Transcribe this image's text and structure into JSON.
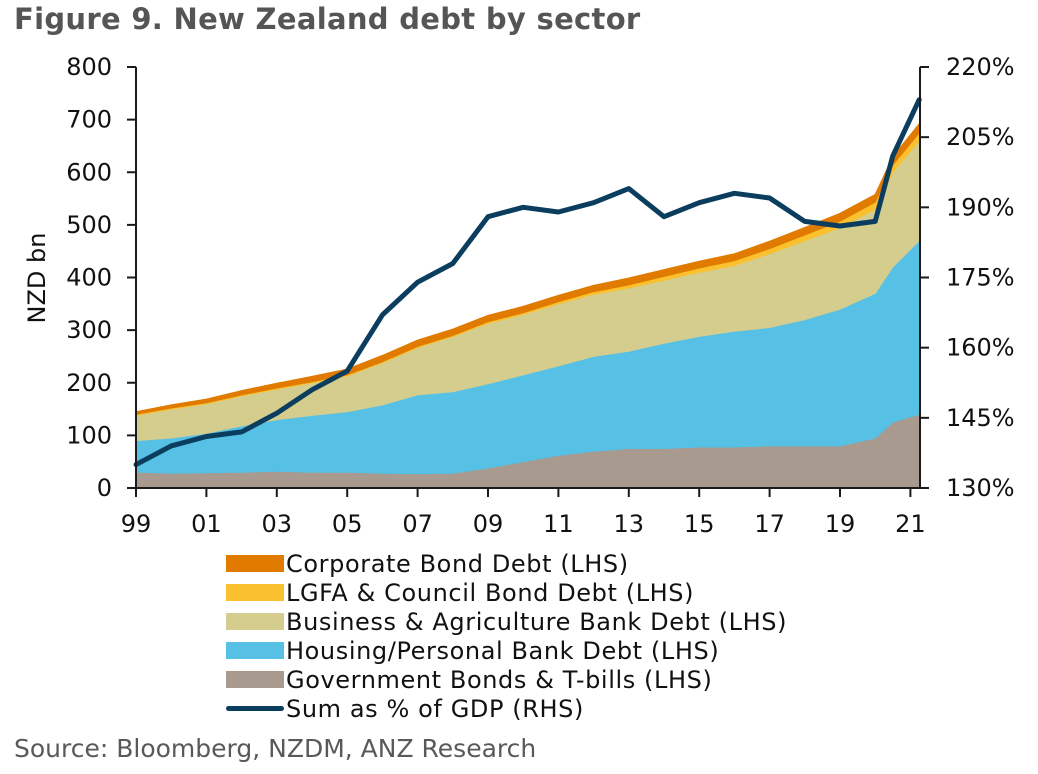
{
  "title": "Figure 9. New Zealand debt by sector",
  "source": "Source: Bloomberg, NZDM, ANZ Research",
  "chart_data": {
    "type": "area",
    "stacked": true,
    "title": "Figure 9. New Zealand debt by sector",
    "xlabel": "",
    "ylabel": "NZD bn",
    "y2label": "",
    "x": [
      1999,
      2000,
      2001,
      2002,
      2003,
      2004,
      2005,
      2006,
      2007,
      2008,
      2009,
      2010,
      2011,
      2012,
      2013,
      2014,
      2015,
      2016,
      2017,
      2018,
      2019,
      2020,
      2020.5,
      2021.25
    ],
    "x_ticks": [
      "99",
      "01",
      "03",
      "05",
      "07",
      "09",
      "11",
      "13",
      "15",
      "17",
      "19",
      "21"
    ],
    "x_tick_years": [
      1999,
      2001,
      2003,
      2005,
      2007,
      2009,
      2011,
      2013,
      2015,
      2017,
      2019,
      2021
    ],
    "ylim": [
      0,
      800
    ],
    "y_ticks": [
      0,
      100,
      200,
      300,
      400,
      500,
      600,
      700,
      800
    ],
    "y2lim": [
      130,
      220
    ],
    "y2_ticks": [
      "130%",
      "145%",
      "160%",
      "175%",
      "190%",
      "205%",
      "220%"
    ],
    "y2_tick_values": [
      130,
      145,
      160,
      175,
      190,
      205,
      220
    ],
    "grid": false,
    "legend_position": "bottom",
    "series": [
      {
        "name": "Government Bonds & T-bills (LHS)",
        "axis": "left",
        "kind": "area",
        "color": "#A89A8E",
        "values": [
          30,
          28,
          29,
          30,
          32,
          30,
          30,
          28,
          27,
          28,
          38,
          50,
          62,
          70,
          75,
          75,
          78,
          78,
          80,
          80,
          80,
          95,
          125,
          140
        ]
      },
      {
        "name": "Housing/Personal Bank Debt (LHS)",
        "axis": "left",
        "kind": "area",
        "color": "#56C0E5",
        "values": [
          60,
          67,
          75,
          88,
          98,
          108,
          115,
          130,
          150,
          155,
          160,
          165,
          170,
          180,
          185,
          200,
          210,
          220,
          225,
          240,
          260,
          275,
          295,
          330
        ]
      },
      {
        "name": "Business & Agriculture Bank Debt (LHS)",
        "axis": "left",
        "kind": "area",
        "color": "#D4CD8E",
        "values": [
          48,
          55,
          56,
          57,
          58,
          62,
          68,
          80,
          90,
          105,
          115,
          115,
          118,
          118,
          120,
          120,
          122,
          125,
          140,
          150,
          155,
          160,
          180,
          190
        ]
      },
      {
        "name": "LGFA & Council Bond Debt (LHS)",
        "axis": "left",
        "kind": "area",
        "color": "#FBC02D",
        "values": [
          2,
          2,
          2,
          2,
          2,
          2,
          2,
          2,
          2,
          2,
          3,
          3,
          4,
          5,
          6,
          7,
          8,
          9,
          10,
          11,
          12,
          13,
          14,
          15
        ]
      },
      {
        "name": "Corporate Bond Debt (LHS)",
        "axis": "left",
        "kind": "area",
        "color": "#E07B00",
        "values": [
          5,
          6,
          7,
          8,
          9,
          10,
          11,
          12,
          12,
          12,
          12,
          12,
          12,
          12,
          13,
          13,
          13,
          13,
          14,
          14,
          15,
          15,
          16,
          17
        ]
      },
      {
        "name": "Sum as % of GDP (RHS)",
        "axis": "right",
        "kind": "line",
        "color": "#0B3D5E",
        "values": [
          135,
          139,
          141,
          142,
          146,
          151,
          155,
          167,
          174,
          178,
          188,
          190,
          189,
          191,
          194,
          188,
          191,
          193,
          192,
          187,
          186,
          187,
          201,
          213
        ]
      }
    ]
  },
  "legend": [
    {
      "label": "Corporate Bond Debt (LHS)",
      "color": "#E07B00",
      "kind": "area"
    },
    {
      "label": "LGFA & Council Bond Debt (LHS)",
      "color": "#FBC02D",
      "kind": "area"
    },
    {
      "label": "Business & Agriculture Bank Debt (LHS)",
      "color": "#D4CD8E",
      "kind": "area"
    },
    {
      "label": "Housing/Personal Bank Debt (LHS)",
      "color": "#56C0E5",
      "kind": "area"
    },
    {
      "label": "Government Bonds & T-bills (LHS)",
      "color": "#A89A8E",
      "kind": "area"
    },
    {
      "label": "Sum as % of GDP (RHS)",
      "color": "#0B3D5E",
      "kind": "line"
    }
  ]
}
